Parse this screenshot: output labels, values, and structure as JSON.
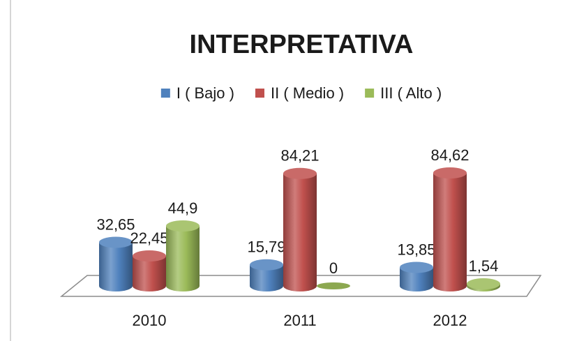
{
  "chart_data": {
    "type": "bar3d",
    "title": "INTERPRETATIVA",
    "categories": [
      "2010",
      "2011",
      "2012"
    ],
    "series": [
      {
        "name": "I ( Bajo )",
        "color": "#4f81bd",
        "values": [
          32.65,
          15.79,
          13.85
        ],
        "value_labels": [
          "32,65",
          "15,79",
          "13,85"
        ]
      },
      {
        "name": "II ( Medio )",
        "color": "#c0504d",
        "values": [
          22.45,
          84.21,
          84.62
        ],
        "value_labels": [
          "22,45",
          "84,21",
          "84,62"
        ]
      },
      {
        "name": "III ( Alto )",
        "color": "#9bbb59",
        "values": [
          44.9,
          0,
          1.54
        ],
        "value_labels": [
          "44,9",
          "0",
          "1,54"
        ]
      }
    ],
    "legend": "top"
  }
}
